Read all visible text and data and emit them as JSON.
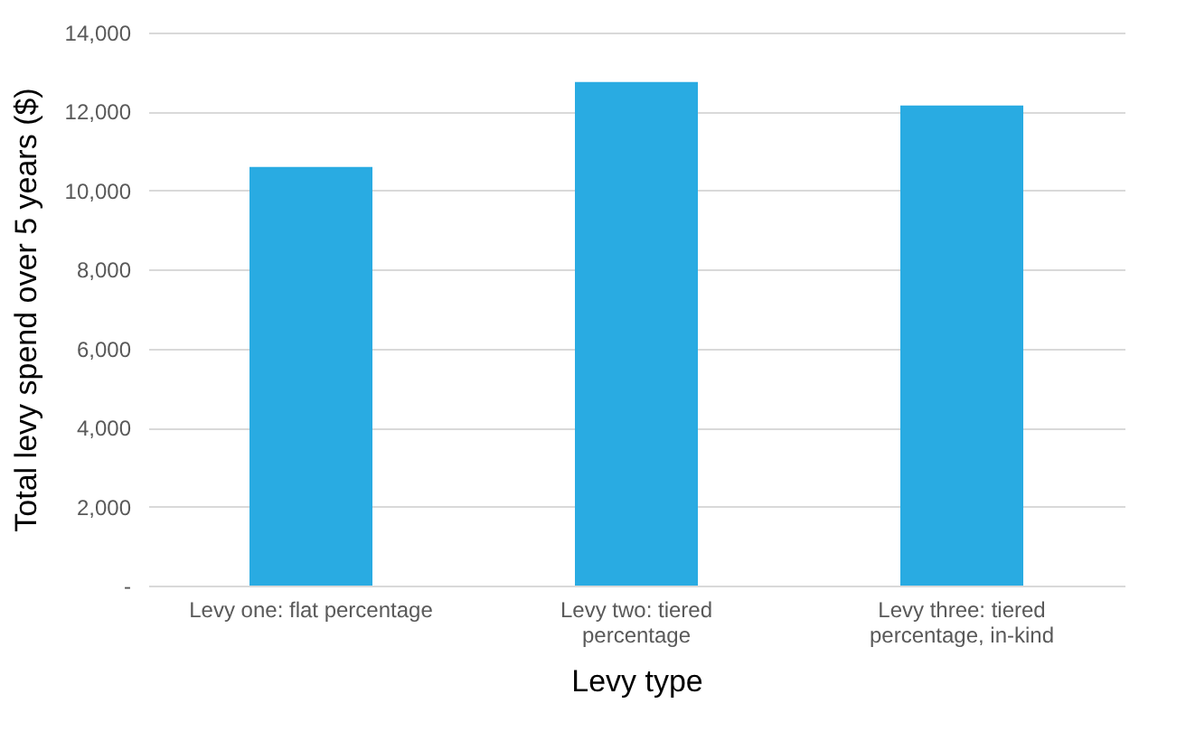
{
  "chart_data": {
    "type": "bar",
    "xlabel": "Levy type",
    "ylabel": "Total levy spend over 5 years ($)",
    "categories": [
      "Levy one: flat percentage",
      "Levy two: tiered percentage",
      "Levy three: tiered percentage, in-kind"
    ],
    "values": [
      10600,
      12750,
      12150
    ],
    "color": "#29abe2",
    "ylim": [
      0,
      14000
    ],
    "yticks": [
      {
        "value": 0,
        "label": "-"
      },
      {
        "value": 2000,
        "label": "2,000"
      },
      {
        "value": 4000,
        "label": "4,000"
      },
      {
        "value": 6000,
        "label": "6,000"
      },
      {
        "value": 8000,
        "label": "8,000"
      },
      {
        "value": 10000,
        "label": "10,000"
      },
      {
        "value": 12000,
        "label": "12,000"
      },
      {
        "value": 14000,
        "label": "14,000"
      }
    ],
    "grid": "y"
  }
}
